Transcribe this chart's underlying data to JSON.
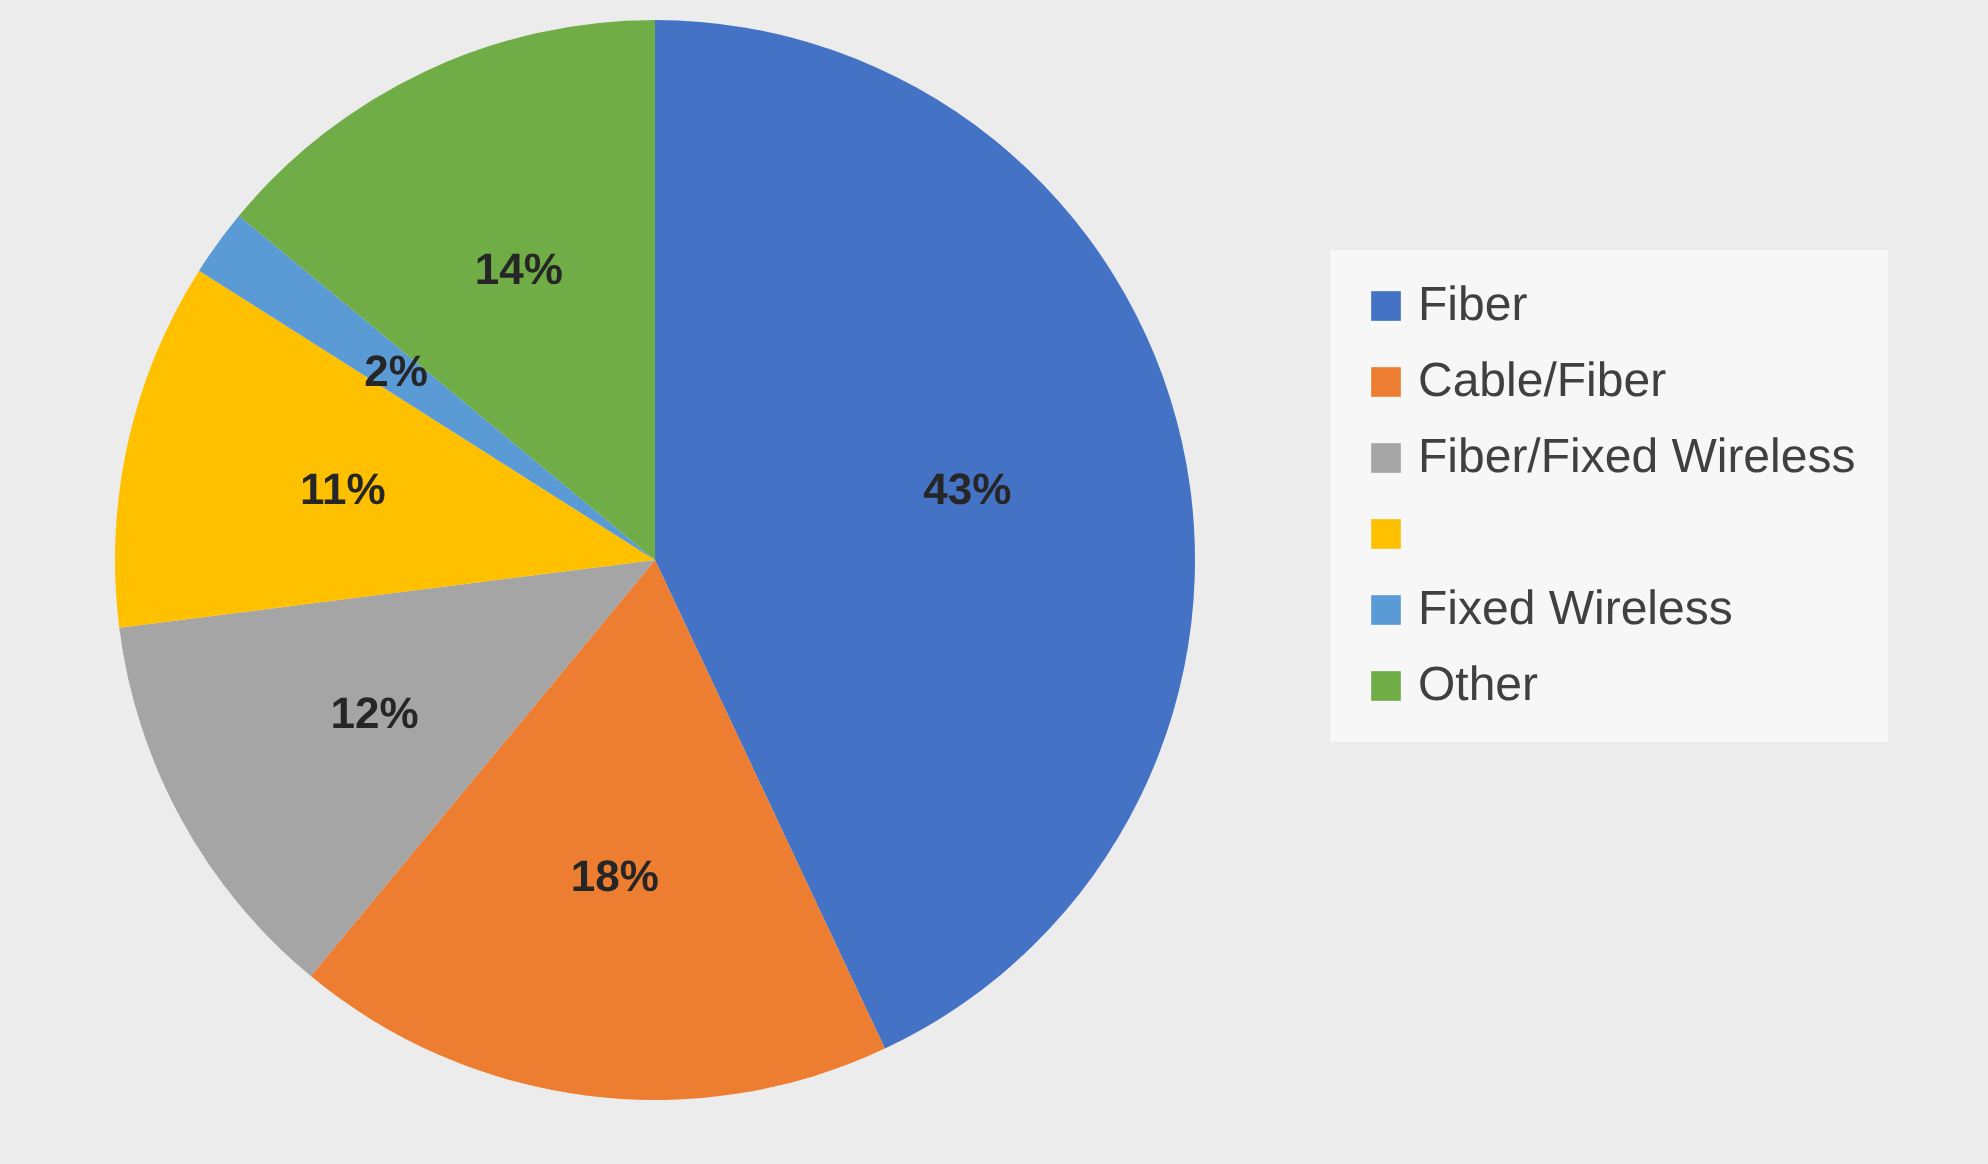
{
  "chart_data": {
    "type": "pie",
    "categories": [
      "Fiber",
      "Cable/Fiber",
      "Fiber/Fixed Wireless",
      null,
      "Fixed Wireless",
      "Other"
    ],
    "values": [
      43,
      18,
      12,
      11,
      2,
      14
    ],
    "value_labels": [
      "43%",
      "18%",
      "12%",
      "11%",
      "2%",
      "14%"
    ],
    "colors": [
      "#4472c4",
      "#ed7d31",
      "#a5a5a5",
      "#ffc000",
      "#5b9bd5",
      "#70ad47"
    ],
    "legend": "right"
  }
}
